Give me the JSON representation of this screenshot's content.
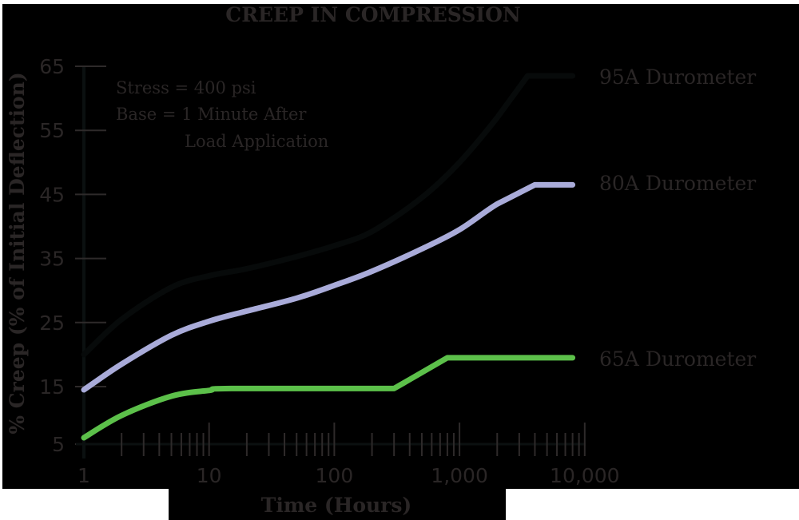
{
  "chart_data": {
    "type": "line",
    "title": "CREEP IN COMPRESSION",
    "xlabel": "Time (Hours)",
    "ylabel": "% Creep (% of Initial Deflection)",
    "x_scale": "log",
    "xlim": [
      1,
      10000
    ],
    "ylim": [
      5,
      65
    ],
    "x_ticks": [
      1,
      10,
      100,
      1000,
      10000
    ],
    "x_tick_labels": [
      "1",
      "10",
      "100",
      "1,000",
      "10,000"
    ],
    "y_ticks": [
      5,
      15,
      25,
      35,
      45,
      55,
      65
    ],
    "y_tick_labels": [
      "5",
      "15",
      "25",
      "35",
      "45",
      "55",
      "65"
    ],
    "grid": false,
    "legend_position": "right, inline labels at curve ends",
    "annotations": [
      "Stress = 400 psi",
      "Base = 1 Minute After",
      "Load Application"
    ],
    "series": [
      {
        "name": "95A Durometer",
        "color": "#070a0a",
        "points": [
          [
            1,
            20
          ],
          [
            2,
            25.5
          ],
          [
            5,
            30.5
          ],
          [
            10,
            32.3
          ],
          [
            20,
            33.4
          ],
          [
            50,
            35.3
          ],
          [
            100,
            37
          ],
          [
            200,
            39.2
          ],
          [
            500,
            44.5
          ],
          [
            1000,
            50
          ],
          [
            2000,
            57
          ],
          [
            3500,
            63.5
          ],
          [
            8000,
            63.5
          ]
        ]
      },
      {
        "name": "80A Durometer",
        "color": "#a9abd9",
        "points": [
          [
            1,
            14.5
          ],
          [
            2,
            18.5
          ],
          [
            5,
            23
          ],
          [
            10,
            25.2
          ],
          [
            20,
            26.8
          ],
          [
            50,
            28.8
          ],
          [
            100,
            30.8
          ],
          [
            200,
            33
          ],
          [
            500,
            36.5
          ],
          [
            1000,
            39.5
          ],
          [
            2000,
            43.5
          ],
          [
            4000,
            46.5
          ],
          [
            8000,
            46.5
          ]
        ]
      },
      {
        "name": "65A Durometer",
        "color": "#5cc04a",
        "points": [
          [
            1,
            6.5
          ],
          [
            2,
            10.5
          ],
          [
            5,
            13.5
          ],
          [
            10,
            14.4
          ],
          [
            15,
            14.7
          ],
          [
            300,
            14.7
          ],
          [
            800,
            19.5
          ],
          [
            8000,
            19.5
          ]
        ]
      }
    ]
  },
  "colors": {
    "background": "#000000",
    "page": "#ffffff",
    "text": "#2a2626",
    "axis": "#0b1010",
    "tick": "#2e2a2a"
  }
}
